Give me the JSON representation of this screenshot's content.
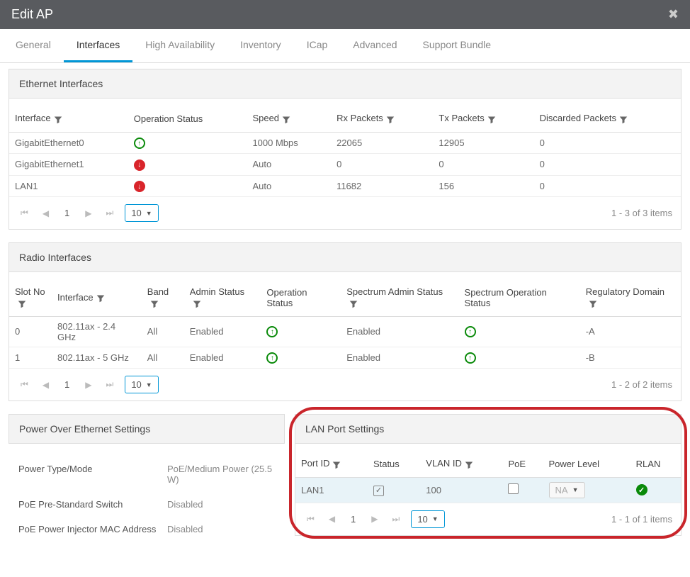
{
  "header": {
    "title": "Edit AP"
  },
  "tabs": [
    "General",
    "Interfaces",
    "High Availability",
    "Inventory",
    "ICap",
    "Advanced",
    "Support Bundle"
  ],
  "active_tab": "Interfaces",
  "eth_panel": {
    "title": "Ethernet Interfaces",
    "cols": [
      "Interface",
      "Operation Status",
      "Speed",
      "Rx Packets",
      "Tx Packets",
      "Discarded Packets"
    ],
    "rows": [
      {
        "iface": "GigabitEthernet0",
        "status": "up",
        "speed": "1000 Mbps",
        "rx": "22065",
        "tx": "12905",
        "disc": "0"
      },
      {
        "iface": "GigabitEthernet1",
        "status": "down",
        "speed": "Auto",
        "rx": "0",
        "tx": "0",
        "disc": "0"
      },
      {
        "iface": "LAN1",
        "status": "down",
        "speed": "Auto",
        "rx": "11682",
        "tx": "156",
        "disc": "0"
      }
    ],
    "pager": {
      "page": "1",
      "size": "10",
      "summary": "1 - 3 of 3 items"
    }
  },
  "radio_panel": {
    "title": "Radio Interfaces",
    "cols": [
      "Slot No",
      "Interface",
      "Band",
      "Admin Status",
      "Operation Status",
      "Spectrum Admin Status",
      "Spectrum Operation Status",
      "Regulatory Domain"
    ],
    "rows": [
      {
        "slot": "0",
        "iface": "802.11ax - 2.4 GHz",
        "band": "All",
        "admin": "Enabled",
        "op": "up",
        "spec_admin": "Enabled",
        "spec_op": "up",
        "reg": "-A"
      },
      {
        "slot": "1",
        "iface": "802.11ax - 5 GHz",
        "band": "All",
        "admin": "Enabled",
        "op": "up",
        "spec_admin": "Enabled",
        "spec_op": "up",
        "reg": "-B"
      }
    ],
    "pager": {
      "page": "1",
      "size": "10",
      "summary": "1 - 2 of 2 items"
    }
  },
  "poe_panel": {
    "title": "Power Over Ethernet Settings",
    "rows": [
      {
        "k": "Power Type/Mode",
        "v": "PoE/Medium Power (25.5 W)"
      },
      {
        "k": "PoE Pre-Standard Switch",
        "v": "Disabled"
      },
      {
        "k": "PoE Power Injector MAC Address",
        "v": "Disabled"
      }
    ]
  },
  "lan_panel": {
    "title": "LAN Port Settings",
    "cols": [
      "Port ID",
      "Status",
      "VLAN ID",
      "PoE",
      "Power Level",
      "RLAN"
    ],
    "rows": [
      {
        "port": "LAN1",
        "status_checked": true,
        "vlan": "100",
        "poe_checked": false,
        "power": "NA",
        "rlan": "check"
      }
    ],
    "pager": {
      "page": "1",
      "size": "10",
      "summary": "1 - 1 of 1 items"
    }
  },
  "colors": {
    "accent": "#0096d6",
    "up": "#0a8a0a",
    "down": "#d9252b",
    "annot": "#c9252b",
    "header_bg": "#595b5f"
  }
}
